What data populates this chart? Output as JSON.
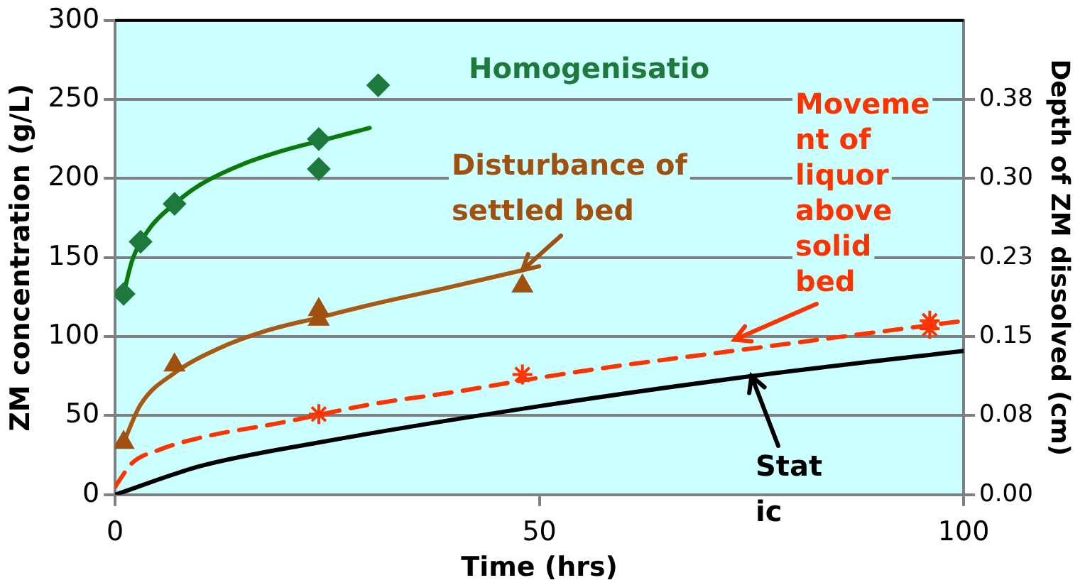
{
  "chart_data": {
    "type": "scatter",
    "xlabel": "Time (hrs)",
    "ylabel": "ZM concentration (g/L)",
    "y2label": "Depth of ZM dissolved (cm)",
    "xlim": [
      0,
      100
    ],
    "xticks": [
      0,
      50,
      100
    ],
    "ylim": [
      0,
      300
    ],
    "yticks": [
      0,
      50,
      100,
      150,
      200,
      250,
      300
    ],
    "y2lim": [
      0,
      0.456
    ],
    "y2ticks": [
      {
        "value": 0,
        "label": "0.00"
      },
      {
        "value": 0.076,
        "label": "0.08"
      },
      {
        "value": 0.152,
        "label": "0.15"
      },
      {
        "value": 0.228,
        "label": "0.23"
      },
      {
        "value": 0.304,
        "label": "0.30"
      },
      {
        "value": 0.38,
        "label": "0.38"
      }
    ],
    "grid": "y",
    "legend": false,
    "series": [
      {
        "type": "scatter",
        "name": "Homogenisatio",
        "color": "#1d7a3c",
        "marker": "diamond",
        "x": [
          1,
          3,
          7,
          24,
          24,
          31
        ],
        "values": [
          127,
          160,
          184,
          225,
          206,
          259
        ]
      },
      {
        "type": "line",
        "color": "#0a7a0a",
        "marker": "none",
        "line_style": "solid",
        "x": [
          1,
          2,
          4,
          7,
          10,
          15,
          20,
          25,
          30
        ],
        "values": [
          127,
          148,
          168,
          184,
          196,
          209,
          218,
          225,
          232
        ]
      },
      {
        "type": "scatter",
        "name": "Disturbance of settled bed",
        "color": "#a0500f",
        "marker": "triangle",
        "x": [
          1,
          7,
          24,
          24,
          48
        ],
        "values": [
          33,
          82,
          117,
          111,
          132
        ]
      },
      {
        "type": "line",
        "color": "#a85a14",
        "marker": "none",
        "line_style": "solid",
        "x": [
          1,
          3,
          7,
          12,
          18,
          24,
          30,
          40,
          48
        ],
        "values": [
          33,
          57,
          77,
          92,
          104,
          112,
          120,
          132,
          142
        ]
      },
      {
        "type": "scatter",
        "name": "Moveme nt of liquor above solid bed",
        "color": "#ff3300",
        "marker": "cross",
        "x": [
          24,
          48,
          96,
          96
        ],
        "values": [
          51,
          76,
          110,
          105
        ]
      },
      {
        "type": "line",
        "color": "#ff3300",
        "marker": "none",
        "line_style": "dashed",
        "x": [
          0,
          2,
          5,
          10,
          20,
          30,
          40,
          50,
          60,
          70,
          80,
          90,
          100
        ],
        "values": [
          5,
          20,
          28,
          36,
          46,
          57,
          65,
          74,
          82,
          89,
          96,
          103,
          110
        ]
      },
      {
        "type": "line",
        "name": "Stat ic",
        "color": "#000000",
        "marker": "none",
        "line_style": "solid",
        "x": [
          0,
          10,
          24,
          50,
          75,
          100
        ],
        "values": [
          0,
          18,
          33,
          56,
          75,
          91
        ]
      }
    ]
  }
}
